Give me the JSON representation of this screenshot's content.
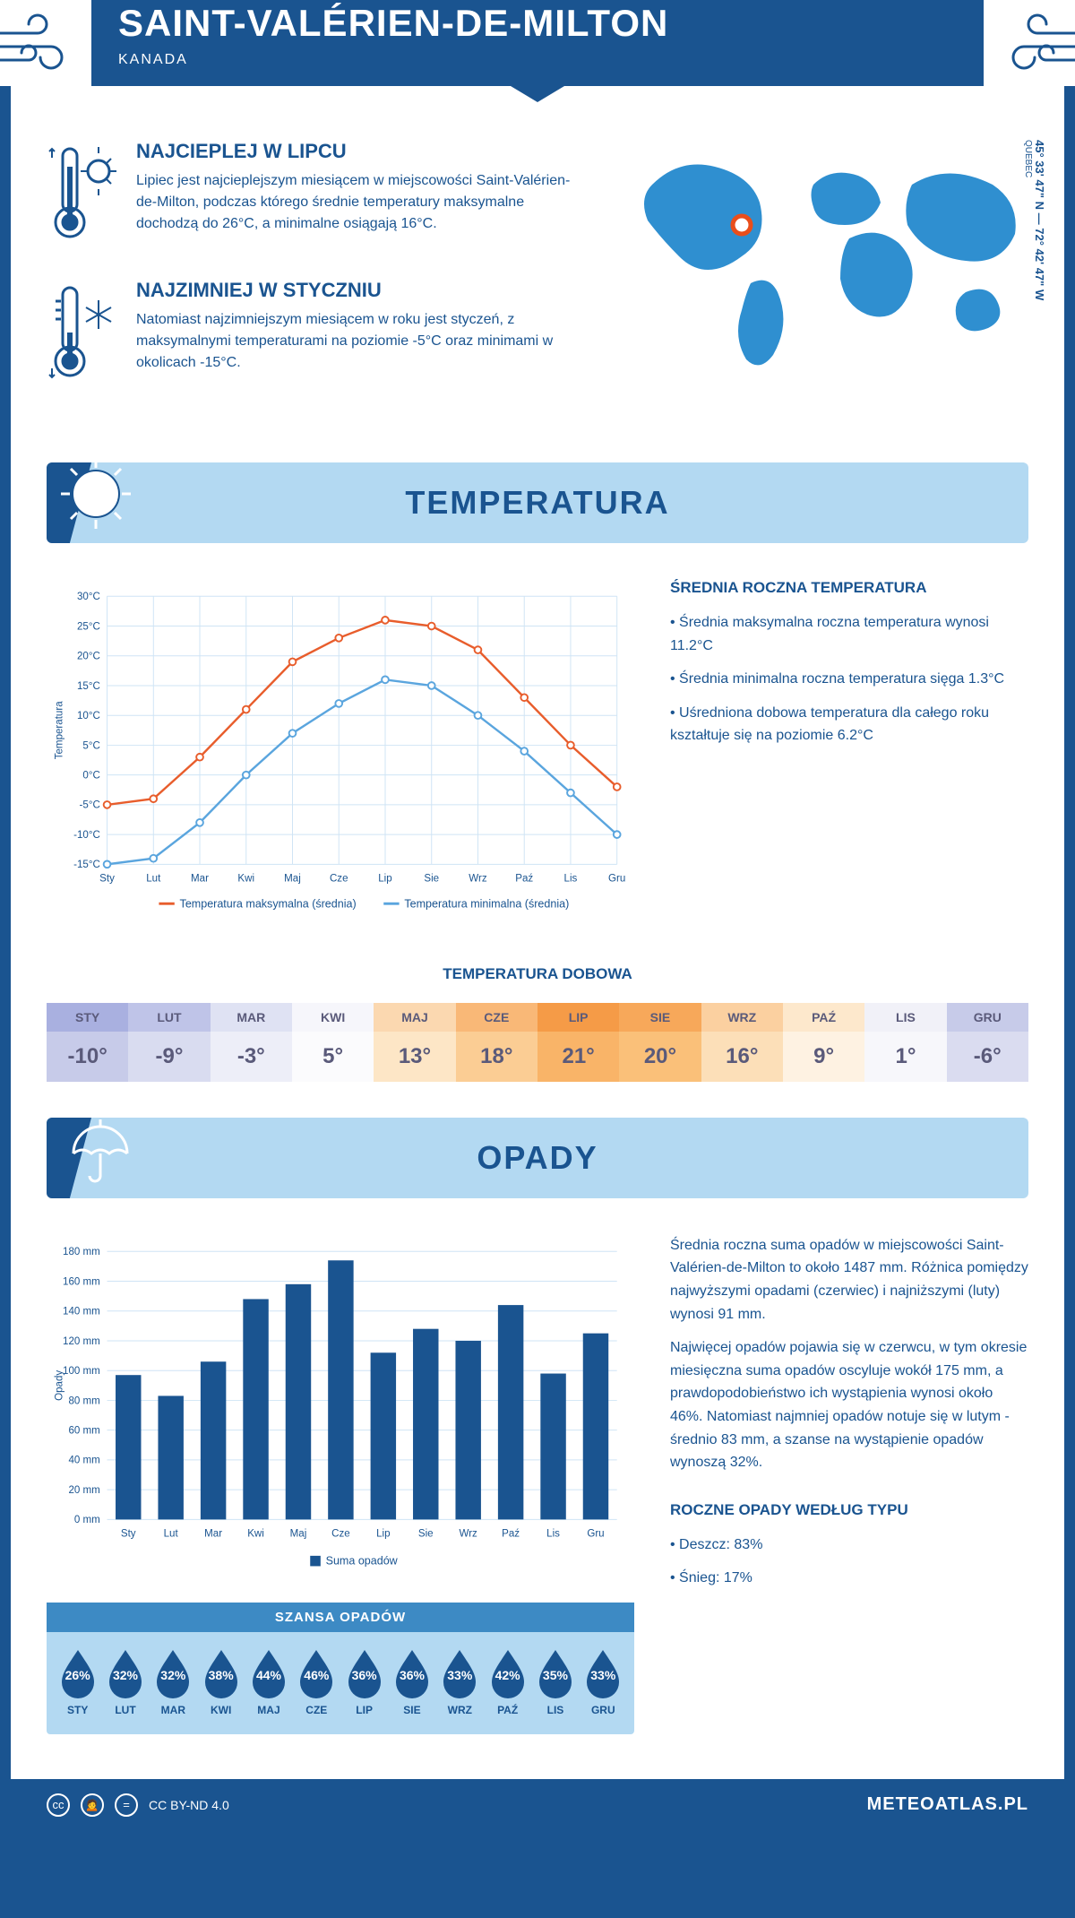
{
  "header": {
    "city": "SAINT-VALÉRIEN-DE-MILTON",
    "country": "KANADA",
    "coords": "45° 33' 47\" N — 72° 42' 47\" W",
    "region": "QUEBEC"
  },
  "intro": {
    "warm_title": "NAJCIEPLEJ W LIPCU",
    "warm_text": "Lipiec jest najcieplejszym miesiącem w miejscowości Saint-Valérien-de-Milton, podczas którego średnie temperatury maksymalne dochodzą do 26°C, a minimalne osiągają 16°C.",
    "cold_title": "NAJZIMNIEJ W STYCZNIU",
    "cold_text": "Natomiast najzimniejszym miesiącem w roku jest styczeń, z maksymalnymi temperaturami na poziomie -5°C oraz minimami w okolicach -15°C."
  },
  "temp_section": {
    "banner": "TEMPERATURA",
    "side_title": "ŚREDNIA ROCZNA TEMPERATURA",
    "bullets": [
      "Średnia maksymalna roczna temperatura wynosi 11.2°C",
      "Średnia minimalna roczna temperatura sięga 1.3°C",
      "Uśredniona dobowa temperatura dla całego roku kształtuje się na poziomie 6.2°C"
    ],
    "chart": {
      "type": "line",
      "months": [
        "Sty",
        "Lut",
        "Mar",
        "Kwi",
        "Maj",
        "Cze",
        "Lip",
        "Sie",
        "Wrz",
        "Paź",
        "Lis",
        "Gru"
      ],
      "max_series": [
        -5,
        -4,
        3,
        11,
        19,
        23,
        26,
        25,
        21,
        13,
        5,
        -2
      ],
      "min_series": [
        -15,
        -14,
        -8,
        0,
        7,
        12,
        16,
        15,
        10,
        4,
        -3,
        -10
      ],
      "ylim": [
        -15,
        30
      ],
      "ytick_step": 5,
      "ylabel": "Temperatura",
      "legend_max": "Temperatura maksymalna (średnia)",
      "legend_min": "Temperatura minimalna (średnia)",
      "color_max": "#e85d2c",
      "color_min": "#5aa5de",
      "grid_color": "#cfe4f5",
      "background": "#ffffff"
    },
    "daily_title": "TEMPERATURA DOBOWA",
    "daily": {
      "months": [
        "STY",
        "LUT",
        "MAR",
        "KWI",
        "MAJ",
        "CZE",
        "LIP",
        "SIE",
        "WRZ",
        "PAŹ",
        "LIS",
        "GRU"
      ],
      "values": [
        "-10°",
        "-9°",
        "-3°",
        "5°",
        "13°",
        "18°",
        "21°",
        "20°",
        "16°",
        "9°",
        "1°",
        "-6°"
      ],
      "header_colors": [
        "#a9b0e0",
        "#bfc4e8",
        "#dfe2f3",
        "#f6f6fb",
        "#fbd8b0",
        "#f9b877",
        "#f59b47",
        "#f7a85a",
        "#fbd0a0",
        "#fde8cc",
        "#f1f1f8",
        "#c7cbe9"
      ],
      "value_colors": [
        "#c7cbe9",
        "#d9dcf0",
        "#edeef8",
        "#fbfbfd",
        "#fde6c6",
        "#fbcd94",
        "#f9b468",
        "#fac079",
        "#fcdfb8",
        "#fef2e2",
        "#f7f7fb",
        "#dadcf0"
      ],
      "text_color": "#5a5a7a"
    }
  },
  "precip_section": {
    "banner": "OPADY",
    "side_p1": "Średnia roczna suma opadów w miejscowości Saint-Valérien-de-Milton to około 1487 mm. Różnica pomiędzy najwyższymi opadami (czerwiec) i najniższymi (luty) wynosi 91 mm.",
    "side_p2": "Najwięcej opadów pojawia się w czerwcu, w tym okresie miesięczna suma opadów oscyluje wokół 175 mm, a prawdopodobieństwo ich wystąpienia wynosi około 46%. Natomiast najmniej opadów notuje się w lutym - średnio 83 mm, a szanse na wystąpienie opadów wynoszą 32%.",
    "chart": {
      "type": "bar",
      "months": [
        "Sty",
        "Lut",
        "Mar",
        "Kwi",
        "Maj",
        "Cze",
        "Lip",
        "Sie",
        "Wrz",
        "Paź",
        "Lis",
        "Gru"
      ],
      "values": [
        97,
        83,
        106,
        148,
        158,
        174,
        112,
        128,
        120,
        144,
        98,
        125
      ],
      "ylim": [
        0,
        180
      ],
      "ytick_step": 20,
      "ylabel": "Opady",
      "legend": "Suma opadów",
      "bar_color": "#1a5490",
      "grid_color": "#cfe4f5"
    },
    "chance_title": "SZANSA OPADÓW",
    "chance": {
      "months": [
        "STY",
        "LUT",
        "MAR",
        "KWI",
        "MAJ",
        "CZE",
        "LIP",
        "SIE",
        "WRZ",
        "PAŹ",
        "LIS",
        "GRU"
      ],
      "values": [
        "26%",
        "32%",
        "32%",
        "38%",
        "44%",
        "46%",
        "36%",
        "36%",
        "33%",
        "42%",
        "35%",
        "33%"
      ],
      "drop_color": "#1a5490"
    },
    "type_title": "ROCZNE OPADY WEDŁUG TYPU",
    "type_bullets": [
      "Deszcz: 83%",
      "Śnieg: 17%"
    ]
  },
  "footer": {
    "license": "CC BY-ND 4.0",
    "site": "METEOATLAS.PL"
  },
  "map": {
    "land_color": "#2f8fd0",
    "marker_color": "#e94e1b",
    "marker_x": 140,
    "marker_y": 95
  }
}
